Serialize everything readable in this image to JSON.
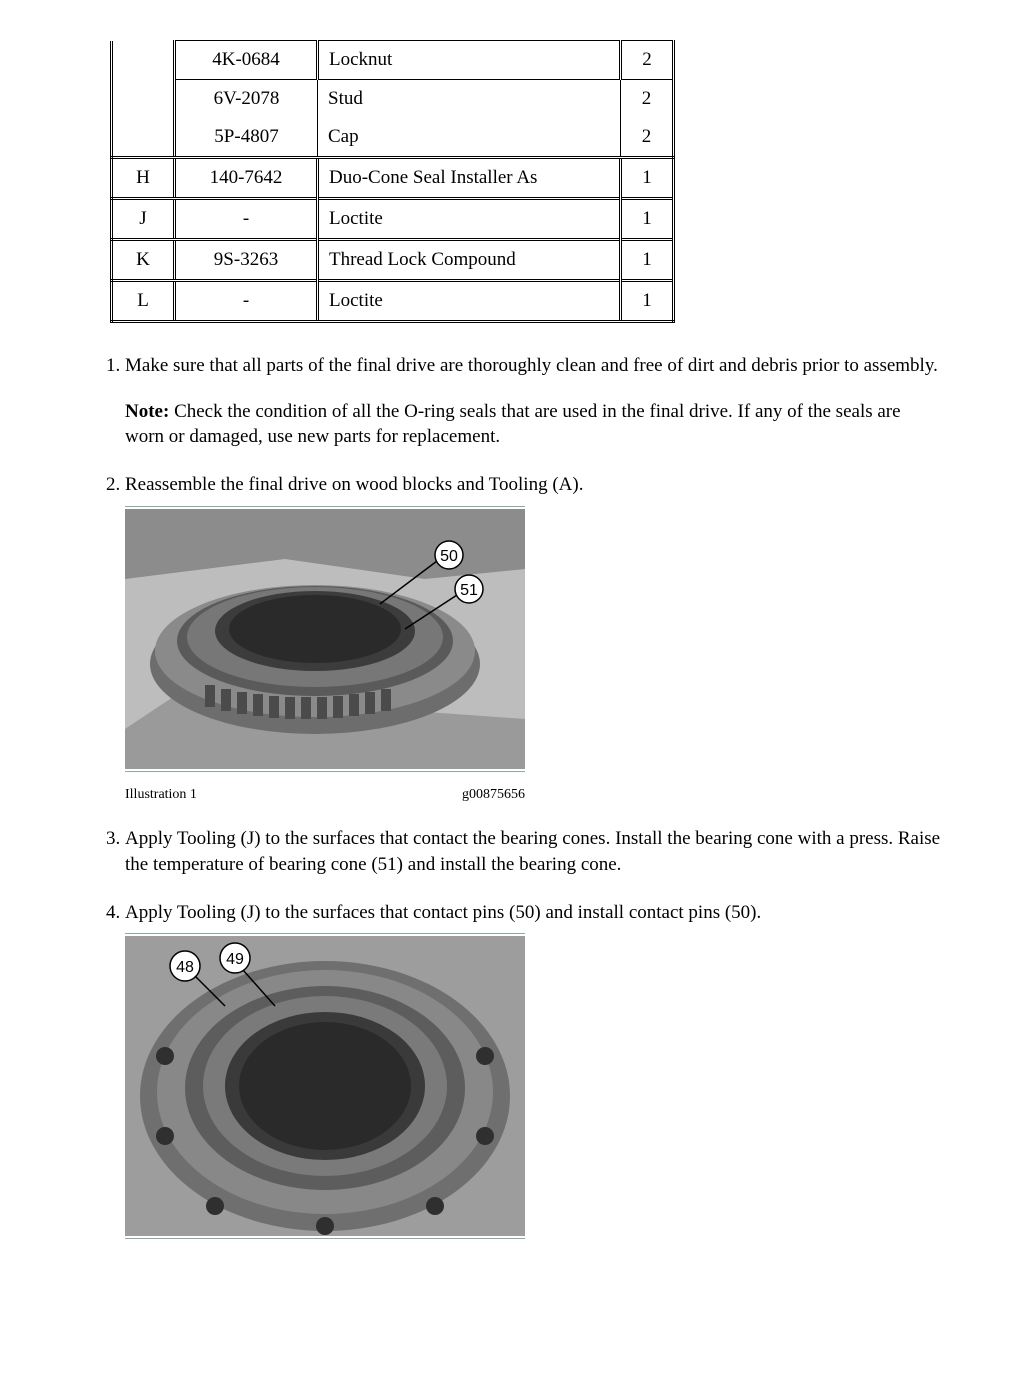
{
  "table": {
    "rows": [
      {
        "c1": "",
        "c2": "4K-0684",
        "c3": "Locknut",
        "c4": "2",
        "sep": true,
        "grouped": true
      },
      {
        "c1": "",
        "c2": "6V-2078",
        "c3": "Stud",
        "c4": "2",
        "sep": false,
        "grouped": true
      },
      {
        "c1": "",
        "c2": "5P-4807",
        "c3": "Cap",
        "c4": "2",
        "sep": false,
        "grouped": true
      },
      {
        "c1": "H",
        "c2": "140-7642",
        "c3": "Duo-Cone Seal Installer As",
        "c4": "1",
        "sep": true,
        "grouped": false
      },
      {
        "c1": "J",
        "c2": "-",
        "c3": "Loctite",
        "c4": "1",
        "sep": true,
        "grouped": false
      },
      {
        "c1": "K",
        "c2": "9S-3263",
        "c3": "Thread Lock Compound",
        "c4": "1",
        "sep": true,
        "grouped": false
      },
      {
        "c1": "L",
        "c2": "-",
        "c3": "Loctite",
        "c4": "1",
        "sep": true,
        "grouped": false
      }
    ]
  },
  "steps": {
    "s1": "Make sure that all parts of the final drive are thoroughly clean and free of dirt and debris prior to assembly.",
    "note_label": "Note:",
    "note_body": " Check the condition of all the O-ring seals that are used in the final drive. If any of the seals are worn or damaged, use new parts for replacement.",
    "s2": "Reassemble the final drive on wood blocks and Tooling (A).",
    "s3": "Apply Tooling (J) to the surfaces that contact the bearing cones. Install the bearing cone with a press. Raise the temperature of bearing cone (51) and install the bearing cone.",
    "s4": "Apply Tooling (J) to the surfaces that contact pins (50) and install contact pins (50)."
  },
  "illu1": {
    "caption_left": "Illustration 1",
    "caption_right": "g00875656",
    "callouts": {
      "a": "50",
      "b": "51"
    }
  },
  "illu2": {
    "callouts": {
      "a": "48",
      "b": "49"
    }
  }
}
